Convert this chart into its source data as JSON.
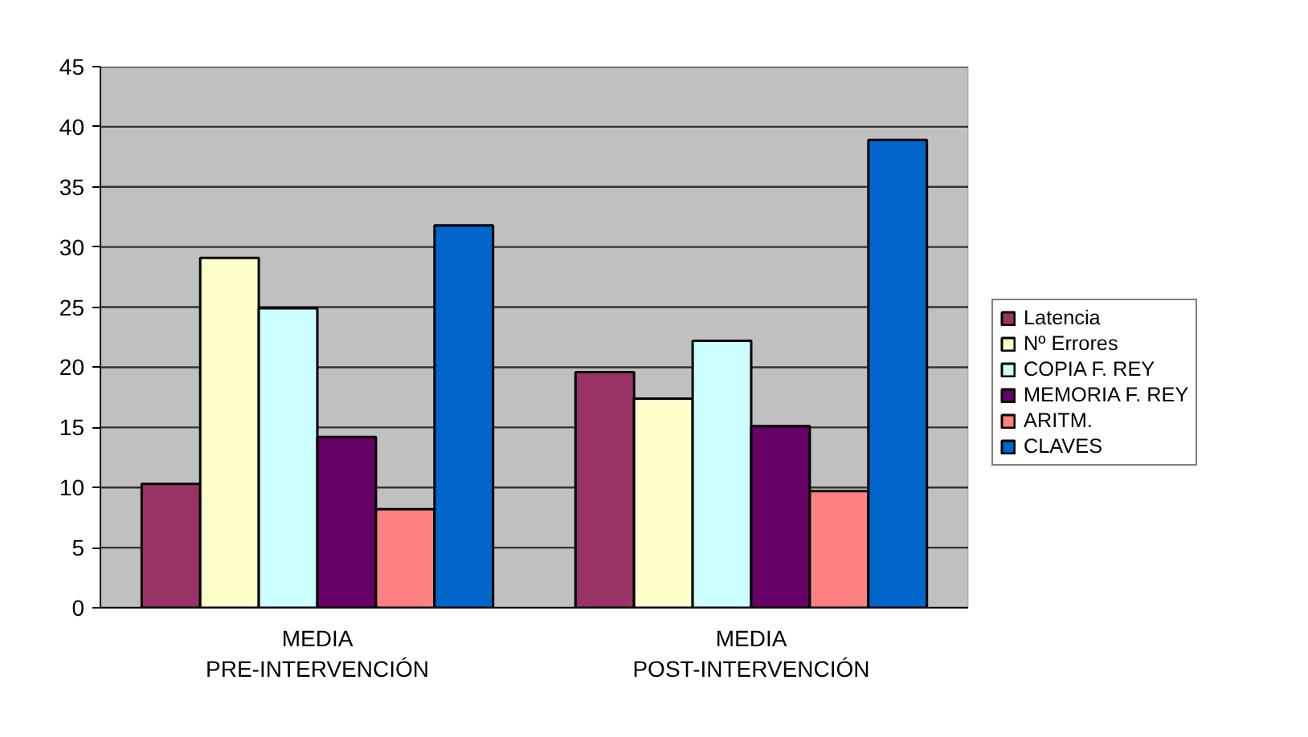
{
  "chart_data": {
    "type": "bar",
    "categories": [
      "MEDIA\nPRE-INTERVENCIÓN",
      "MEDIA\nPOST-INTERVENCIÓN"
    ],
    "series": [
      {
        "name": "Latencia",
        "color": "#993366",
        "values": [
          10.3,
          19.6
        ]
      },
      {
        "name": "Nº Errores",
        "color": "#ffffcc",
        "values": [
          29.1,
          17.4
        ]
      },
      {
        "name": "COPIA F. REY",
        "color": "#ccffff",
        "values": [
          24.9,
          22.2
        ]
      },
      {
        "name": "MEMORIA F. REY",
        "color": "#660066",
        "values": [
          14.2,
          15.1
        ]
      },
      {
        "name": "ARITM.",
        "color": "#ff8080",
        "values": [
          8.2,
          9.7
        ]
      },
      {
        "name": "CLAVES",
        "color": "#0066cc",
        "values": [
          31.8,
          38.9
        ]
      }
    ],
    "ylim": [
      0,
      45
    ],
    "yticks": [
      0,
      5,
      10,
      15,
      20,
      25,
      30,
      35,
      40,
      45
    ],
    "grid": "y",
    "legend": "right"
  }
}
